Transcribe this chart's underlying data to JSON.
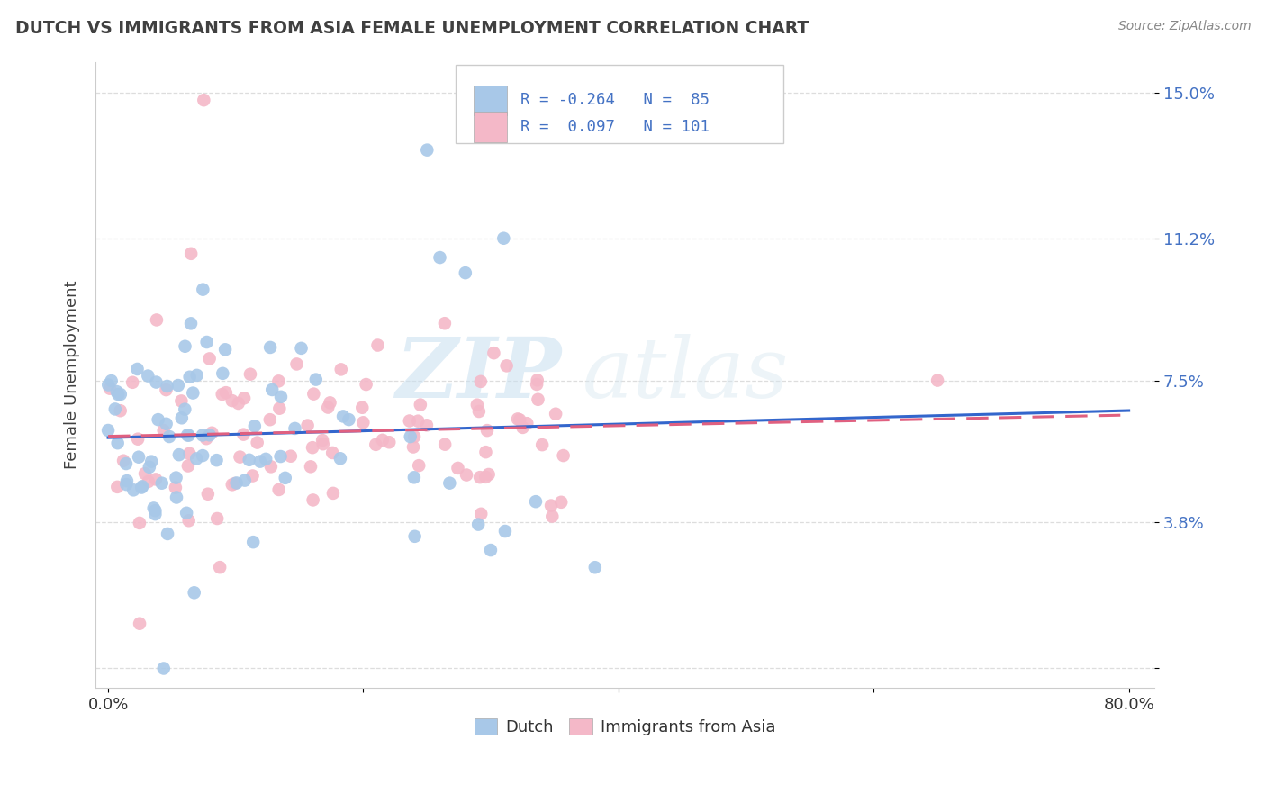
{
  "title": "DUTCH VS IMMIGRANTS FROM ASIA FEMALE UNEMPLOYMENT CORRELATION CHART",
  "source": "Source: ZipAtlas.com",
  "ylabel": "Female Unemployment",
  "y_ticks": [
    0.0,
    0.038,
    0.075,
    0.112,
    0.15
  ],
  "y_tick_labels": [
    "",
    "3.8%",
    "7.5%",
    "11.2%",
    "15.0%"
  ],
  "xlim": [
    -0.01,
    0.82
  ],
  "ylim": [
    -0.005,
    0.158
  ],
  "dutch_R": -0.264,
  "dutch_N": 85,
  "asia_R": 0.097,
  "asia_N": 101,
  "dutch_color": "#a8c8e8",
  "dutch_line_color": "#3366cc",
  "asia_color": "#f4b8c8",
  "asia_line_color": "#e06080",
  "legend_label_dutch": "Dutch",
  "legend_label_asia": "Immigrants from Asia",
  "watermark_zip": "ZIP",
  "watermark_atlas": "atlas",
  "background_color": "#ffffff",
  "legend_text_color": "#4472c4",
  "legend_R_color": "#4472c4",
  "title_color": "#404040",
  "source_color": "#888888",
  "ylabel_color": "#404040",
  "tick_color": "#4472c4",
  "xtick_color": "#333333",
  "grid_color": "#dddddd"
}
